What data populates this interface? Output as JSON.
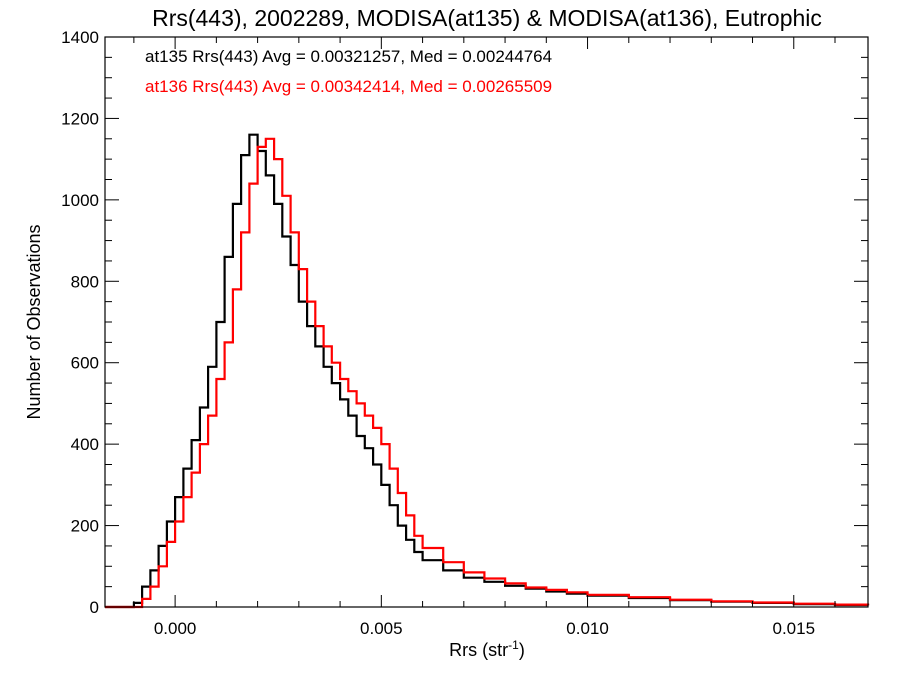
{
  "chart_data": {
    "type": "line",
    "step": true,
    "title": "Rrs(443), 2002289, MODISA(at135) & MODISA(at136), Eutrophic",
    "xlabel": "Rrs (str",
    "xlabel_sup": "-1",
    "xlabel_end": ")",
    "ylabel": "Number of Observations",
    "xlim": [
      -0.0017,
      0.0168
    ],
    "ylim": [
      0,
      1400
    ],
    "x_ticks": [
      0.0,
      0.005,
      0.01,
      0.015
    ],
    "x_tick_labels": [
      "0.000",
      "0.005",
      "0.010",
      "0.015"
    ],
    "y_ticks": [
      0,
      200,
      400,
      600,
      800,
      1000,
      1200,
      1400
    ],
    "y_tick_labels": [
      "0",
      "200",
      "400",
      "600",
      "800",
      "1000",
      "1200",
      "1400"
    ],
    "grid": false,
    "annotations": [
      {
        "text": "at135 Rrs(443) Avg = 0.00321257, Med = 0.00244764",
        "color": "#000000"
      },
      {
        "text": "at136 Rrs(443) Avg = 0.00342414, Med = 0.00265509",
        "color": "#ff0000"
      }
    ],
    "series": [
      {
        "color": "#000000",
        "x": [
          -0.0017,
          -0.001,
          -0.0008,
          -0.0006,
          -0.0004,
          -0.0002,
          0.0,
          0.0002,
          0.0004,
          0.0006,
          0.0008,
          0.001,
          0.0012,
          0.0014,
          0.0016,
          0.0018,
          0.002,
          0.0022,
          0.0024,
          0.0026,
          0.0028,
          0.003,
          0.0032,
          0.0034,
          0.0036,
          0.0038,
          0.004,
          0.0042,
          0.0044,
          0.0046,
          0.0048,
          0.005,
          0.0052,
          0.0054,
          0.0056,
          0.0058,
          0.006,
          0.0065,
          0.007,
          0.0075,
          0.008,
          0.0085,
          0.009,
          0.0095,
          0.01,
          0.011,
          0.012,
          0.013,
          0.014,
          0.015,
          0.016,
          0.0168
        ],
        "y": [
          0,
          10,
          50,
          90,
          150,
          210,
          270,
          340,
          410,
          490,
          590,
          700,
          860,
          990,
          1110,
          1160,
          1120,
          1060,
          990,
          910,
          840,
          750,
          690,
          640,
          590,
          550,
          510,
          470,
          420,
          390,
          350,
          300,
          250,
          200,
          165,
          135,
          115,
          90,
          72,
          62,
          52,
          45,
          38,
          33,
          28,
          22,
          17,
          13,
          10,
          7,
          5,
          4
        ]
      },
      {
        "color": "#ff0000",
        "x": [
          -0.0017,
          -0.001,
          -0.0008,
          -0.0006,
          -0.0004,
          -0.0002,
          0.0,
          0.0002,
          0.0004,
          0.0006,
          0.0008,
          0.001,
          0.0012,
          0.0014,
          0.0016,
          0.0018,
          0.002,
          0.0022,
          0.0024,
          0.0026,
          0.0028,
          0.003,
          0.0032,
          0.0034,
          0.0036,
          0.0038,
          0.004,
          0.0042,
          0.0044,
          0.0046,
          0.0048,
          0.005,
          0.0052,
          0.0054,
          0.0056,
          0.0058,
          0.006,
          0.0065,
          0.007,
          0.0075,
          0.008,
          0.0085,
          0.009,
          0.0095,
          0.01,
          0.011,
          0.012,
          0.013,
          0.014,
          0.015,
          0.016,
          0.0168
        ],
        "y": [
          0,
          0,
          20,
          50,
          100,
          160,
          210,
          270,
          330,
          400,
          470,
          560,
          650,
          780,
          920,
          1040,
          1130,
          1150,
          1100,
          1010,
          920,
          830,
          750,
          690,
          640,
          600,
          560,
          530,
          500,
          470,
          440,
          400,
          340,
          280,
          225,
          175,
          145,
          110,
          85,
          70,
          58,
          48,
          42,
          36,
          30,
          24,
          18,
          14,
          11,
          8,
          6,
          4
        ]
      }
    ]
  }
}
